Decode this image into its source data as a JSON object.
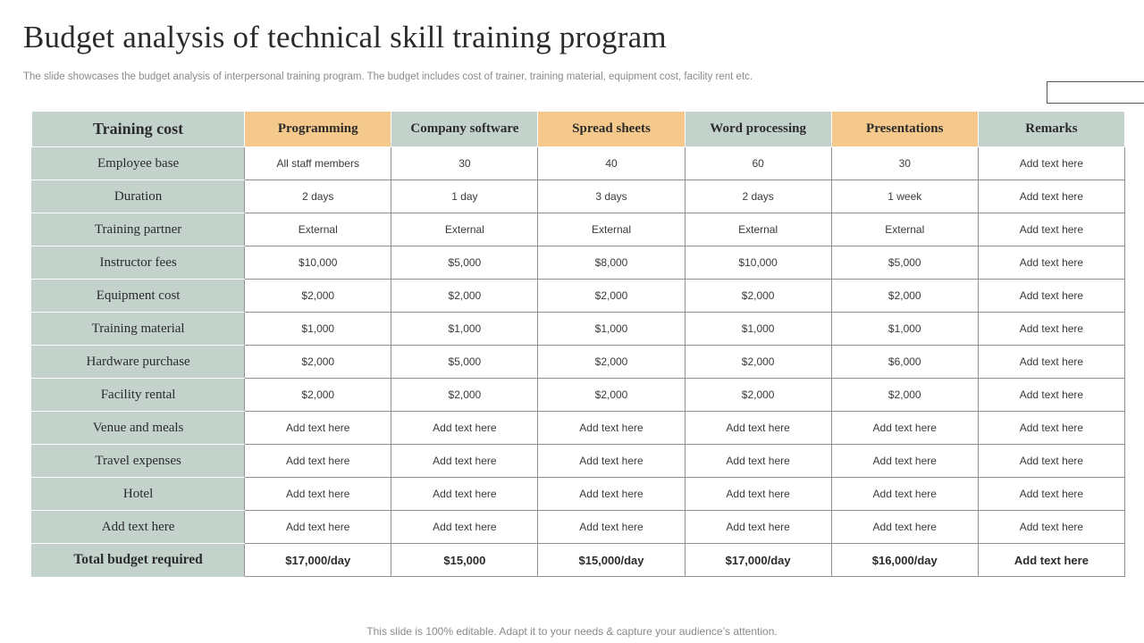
{
  "title": "Budget analysis of  technical skill training program",
  "subtitle": "The slide showcases the budget analysis of interpersonal training program. The budget includes cost of trainer, training material, equipment cost, facility rent etc.",
  "colors": {
    "sage": "#c3d3cb",
    "orange": "#f5c98b"
  },
  "table": {
    "corner_label": "Training cost",
    "columns": [
      {
        "label": "Programming",
        "color": "orange"
      },
      {
        "label": "Company software",
        "color": "green"
      },
      {
        "label": "Spread sheets",
        "color": "orange"
      },
      {
        "label": "Word processing",
        "color": "green"
      },
      {
        "label": "Presentations",
        "color": "orange"
      },
      {
        "label": "Remarks",
        "color": "green"
      }
    ],
    "rows": [
      {
        "label": "Employee base",
        "values": [
          "All staff members",
          "30",
          "40",
          "60",
          "30",
          "Add text here"
        ]
      },
      {
        "label": "Duration",
        "values": [
          "2 days",
          "1 day",
          "3 days",
          "2 days",
          "1 week",
          "Add text here"
        ]
      },
      {
        "label": "Training partner",
        "values": [
          "External",
          "External",
          "External",
          "External",
          "External",
          "Add text here"
        ]
      },
      {
        "label": "Instructor fees",
        "values": [
          "$10,000",
          "$5,000",
          "$8,000",
          "$10,000",
          "$5,000",
          "Add text here"
        ]
      },
      {
        "label": "Equipment cost",
        "values": [
          "$2,000",
          "$2,000",
          "$2,000",
          "$2,000",
          "$2,000",
          "Add text here"
        ]
      },
      {
        "label": "Training material",
        "values": [
          "$1,000",
          "$1,000",
          "$1,000",
          "$1,000",
          "$1,000",
          "Add text here"
        ]
      },
      {
        "label": "Hardware purchase",
        "values": [
          "$2,000",
          "$5,000",
          "$2,000",
          "$2,000",
          "$6,000",
          "Add text here"
        ]
      },
      {
        "label": "Facility rental",
        "values": [
          "$2,000",
          "$2,000",
          "$2,000",
          "$2,000",
          "$2,000",
          "Add text here"
        ]
      },
      {
        "label": "Venue and meals",
        "values": [
          "Add text here",
          "Add text here",
          "Add text here",
          "Add text here",
          "Add text here",
          "Add text here"
        ]
      },
      {
        "label": "Travel expenses",
        "values": [
          "Add text here",
          "Add text here",
          "Add text here",
          "Add text here",
          "Add text here",
          "Add text here"
        ]
      },
      {
        "label": "Hotel",
        "values": [
          "Add text here",
          "Add text here",
          "Add text here",
          "Add text here",
          "Add text here",
          "Add text here"
        ]
      },
      {
        "label": "Add text here",
        "values": [
          "Add text here",
          "Add text here",
          "Add text here",
          "Add text here",
          "Add text here",
          "Add text here"
        ]
      }
    ],
    "total": {
      "label": "Total budget required",
      "values": [
        "$17,000/day",
        "$15,000",
        "$15,000/day",
        "$17,000/day",
        "$16,000/day",
        "Add text here"
      ]
    }
  },
  "footer": "This slide is 100% editable. Adapt it to your needs & capture your audience’s attention."
}
